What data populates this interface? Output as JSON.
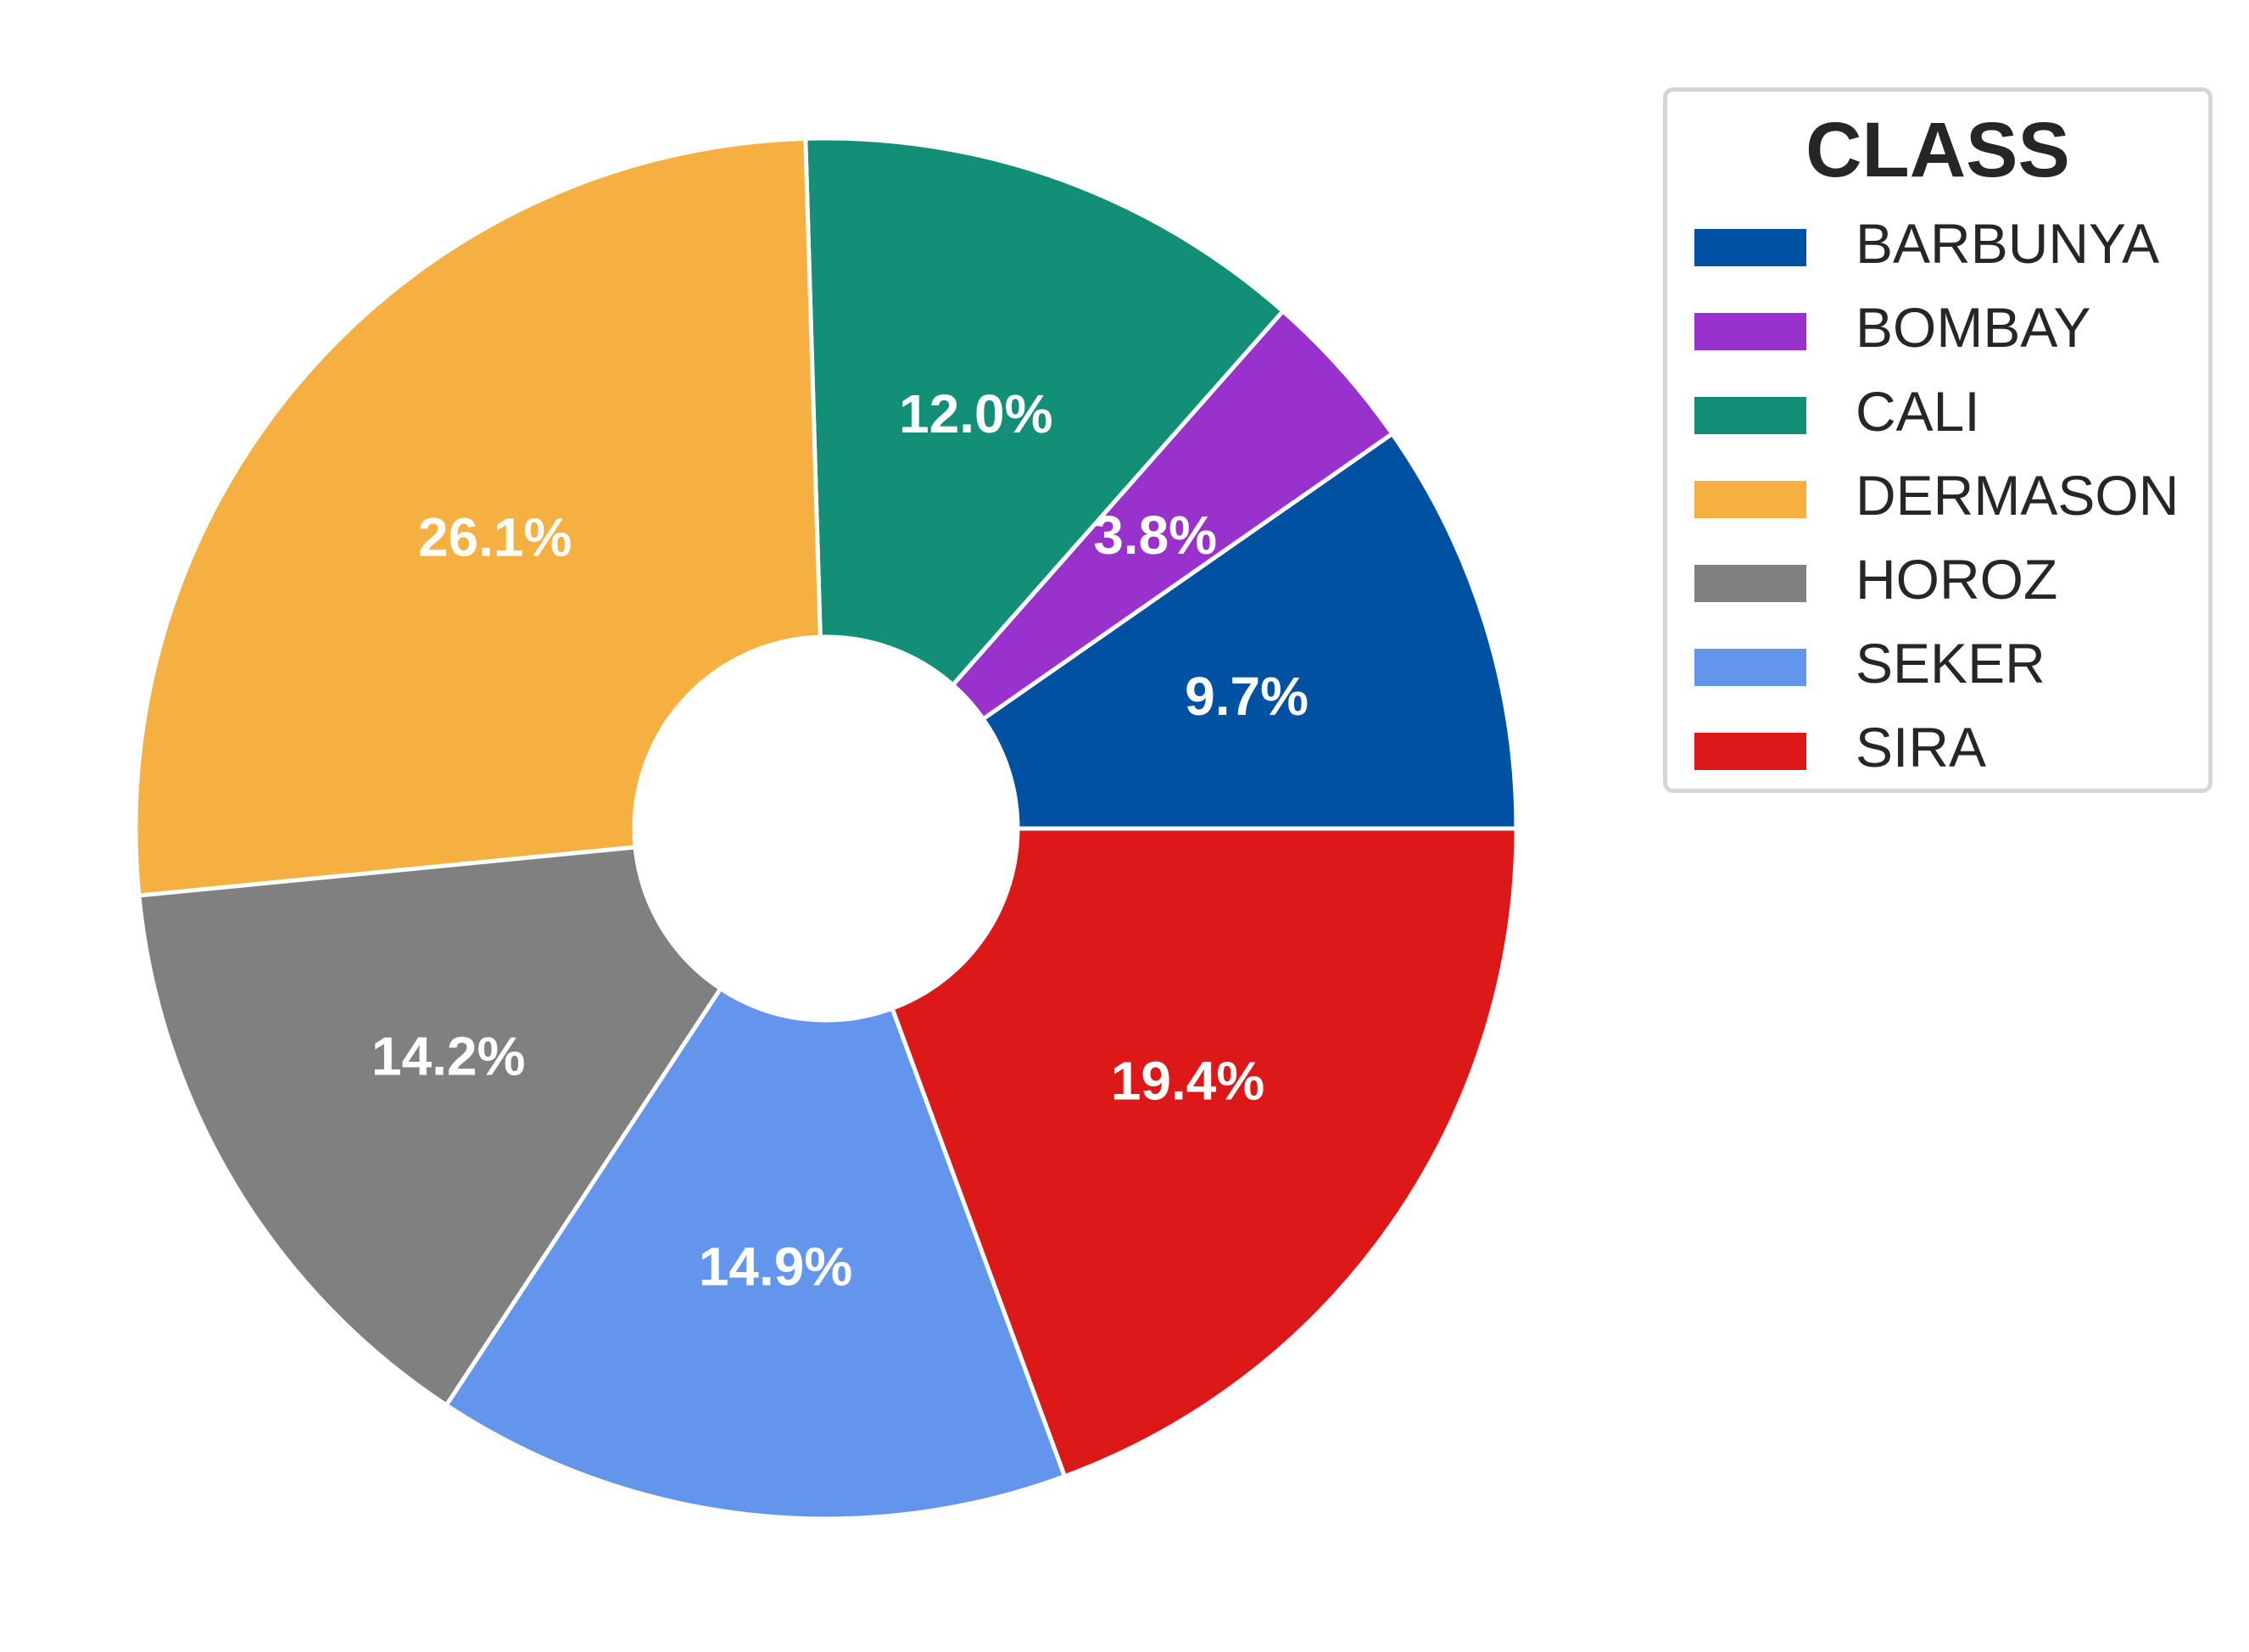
{
  "chart_data": {
    "type": "pie",
    "donut": true,
    "legend_title": "CLASS",
    "legend_placement": "right",
    "direction": "counterclockwise",
    "start_angle_deg": 0,
    "slices": [
      {
        "label": "BARBUNYA",
        "value": 9.7,
        "display": "9.7%",
        "color": "#0051A2"
      },
      {
        "label": "BOMBAY",
        "value": 3.8,
        "display": "3.8%",
        "color": "#9932CC"
      },
      {
        "label": "CALI",
        "value": 12.0,
        "display": "12.0%",
        "color": "#148F77"
      },
      {
        "label": "DERMASON",
        "value": 26.1,
        "display": "26.1%",
        "color": "#F5B041"
      },
      {
        "label": "HOROZ",
        "value": 14.2,
        "display": "14.2%",
        "color": "#808080"
      },
      {
        "label": "SEKER",
        "value": 14.9,
        "display": "14.9%",
        "color": "#6495ED"
      },
      {
        "label": "SIRA",
        "value": 19.4,
        "display": "19.4%",
        "color": "#DC1818"
      }
    ]
  }
}
